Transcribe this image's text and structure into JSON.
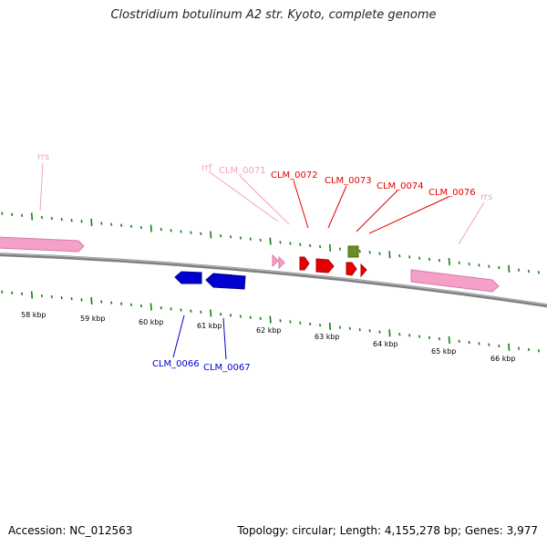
{
  "title": "Clostridium botulinum A2 str. Kyoto, complete genome",
  "footer": {
    "accession": "Accession: NC_012563",
    "summary": "Topology: circular; Length: 4,155,278 bp; Genes: 3,977"
  },
  "colors": {
    "rna": "#f4a0c8",
    "forward_gene": "#e60000",
    "reverse_gene": "#0000d0",
    "other_feature": "#6b8e23",
    "tick": "#1a7a1a",
    "backbone": "#808080"
  },
  "features": [
    {
      "name": "rrs",
      "type": "rna",
      "strand": "+",
      "label": "rrs"
    },
    {
      "name": "CLM_0066",
      "type": "gene",
      "strand": "-",
      "label": "CLM_0066"
    },
    {
      "name": "CLM_0067",
      "type": "gene",
      "strand": "-",
      "label": "CLM_0067"
    },
    {
      "name": "rrf",
      "type": "rna",
      "strand": "+",
      "label": "rrf"
    },
    {
      "name": "CLM_0071",
      "type": "rna",
      "strand": "+",
      "label": "CLM_0071"
    },
    {
      "name": "CLM_0072",
      "type": "gene",
      "strand": "+",
      "label": "CLM_0072"
    },
    {
      "name": "CLM_0073",
      "type": "gene",
      "strand": "+",
      "label": "CLM_0073"
    },
    {
      "name": "CLM_0074",
      "type": "gene",
      "strand": "+",
      "label": "CLM_0074"
    },
    {
      "name": "CLM_0075",
      "type": "other",
      "strand": "+",
      "label": ""
    },
    {
      "name": "CLM_0076",
      "type": "gene",
      "strand": "+",
      "label": "CLM_0076"
    },
    {
      "name": "rrs",
      "type": "rna",
      "strand": "+",
      "label": "rrs"
    }
  ],
  "scale_labels": [
    "58 kbp",
    "59 kbp",
    "60 kbp",
    "61 kbp",
    "62 kbp",
    "63 kbp",
    "64 kbp",
    "65 kbp",
    "66 kbp"
  ]
}
